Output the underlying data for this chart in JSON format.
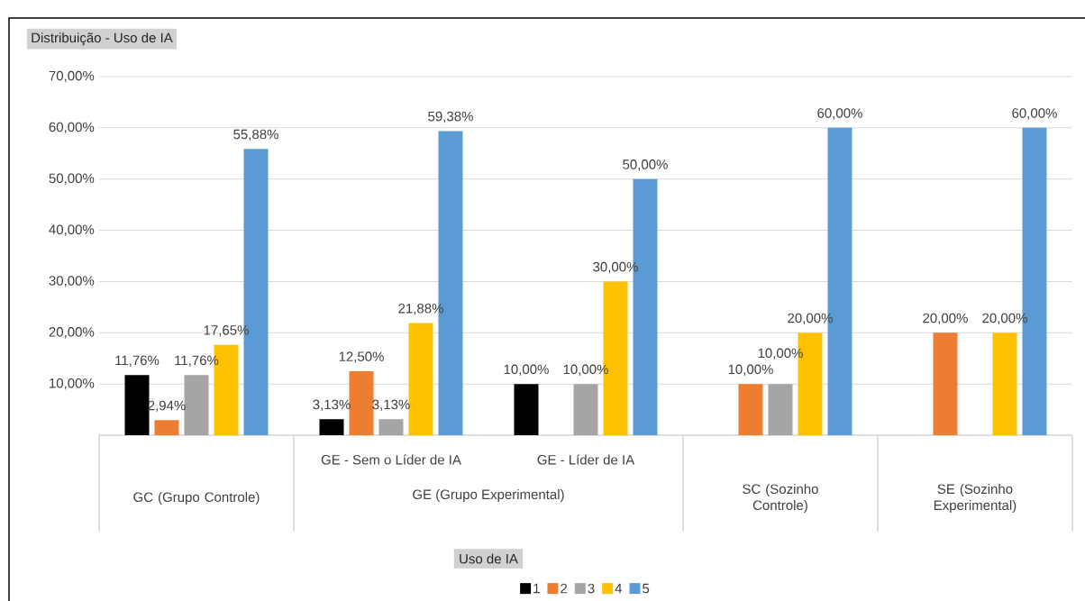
{
  "chart_data": {
    "type": "bar",
    "title": "Distribuição - Uso de IA",
    "categories": [
      "GC (Grupo Controle)",
      "GE - Sem o Líder de IA",
      "GE - Líder de IA",
      "SC (Sozinho Controle)",
      "SE (Sozinho Experimental)"
    ],
    "annotations": [
      "GE (Grupo Experimental)"
    ],
    "series": [
      {
        "name": "1",
        "color": "#000000",
        "values": [
          11.76,
          3.13,
          10.0,
          null,
          null
        ],
        "value_labels": [
          "11,76%",
          "3,13%",
          "10,00%",
          null,
          null
        ]
      },
      {
        "name": "2",
        "color": "#ed7d31",
        "values": [
          2.94,
          12.5,
          null,
          10.0,
          20.0
        ],
        "value_labels": [
          "2,94%",
          "12,50%",
          null,
          "10,00%",
          "20,00%"
        ]
      },
      {
        "name": "3",
        "color": "#a5a5a5",
        "values": [
          11.76,
          3.13,
          10.0,
          10.0,
          null
        ],
        "value_labels": [
          "11,76%",
          "3,13%",
          "10,00%",
          "10,00%",
          null
        ]
      },
      {
        "name": "4",
        "color": "#ffc000",
        "values": [
          17.65,
          21.88,
          30.0,
          20.0,
          20.0
        ],
        "value_labels": [
          "17,65%",
          "21,88%",
          "30,00%",
          "20,00%",
          "20,00%"
        ]
      },
      {
        "name": "5",
        "color": "#5b9bd5",
        "values": [
          55.88,
          59.38,
          50.0,
          60.0,
          60.0
        ],
        "value_labels": [
          "55,88%",
          "59,38%",
          "50,00%",
          "60,00%",
          "60,00%"
        ]
      }
    ],
    "legend_title": "Uso de IA",
    "legend": "bottom",
    "grid": "y",
    "ylim": [
      0,
      70
    ],
    "yticks": [
      {
        "value": 10,
        "label": "10,00%"
      },
      {
        "value": 20,
        "label": "20,00%"
      },
      {
        "value": 30,
        "label": "30,00%"
      },
      {
        "value": 40,
        "label": "40,00%"
      },
      {
        "value": 50,
        "label": "50,00%"
      },
      {
        "value": 60,
        "label": "60,00%"
      },
      {
        "value": 70,
        "label": "70,00%"
      }
    ]
  }
}
